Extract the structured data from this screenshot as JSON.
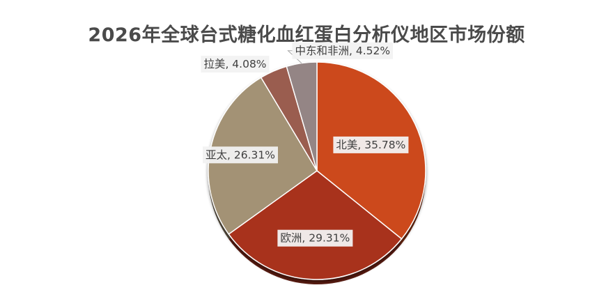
{
  "chart_data": {
    "type": "pie",
    "title": "2026年全球台式糖化血红蛋白分析仪地区市场份额",
    "slices": [
      {
        "name": "北美",
        "value": 35.78,
        "label": "北美, 35.78%",
        "color": "#cc4a1e"
      },
      {
        "name": "欧洲",
        "value": 29.31,
        "label": "欧洲, 29.31%",
        "color": "#a8321f"
      },
      {
        "name": "亚太",
        "value": 26.31,
        "label": "亚太, 26.31%",
        "color": "#a39275"
      },
      {
        "name": "拉美",
        "value": 4.08,
        "label": "拉美, 4.08%",
        "color": "#9a5d4f"
      },
      {
        "name": "中东和非洲",
        "value": 4.52,
        "label": "中东和非洲, 4.52%",
        "color": "#948585"
      }
    ],
    "start_angle": "12 o'clock",
    "direction": "clockwise",
    "legend": "none"
  }
}
